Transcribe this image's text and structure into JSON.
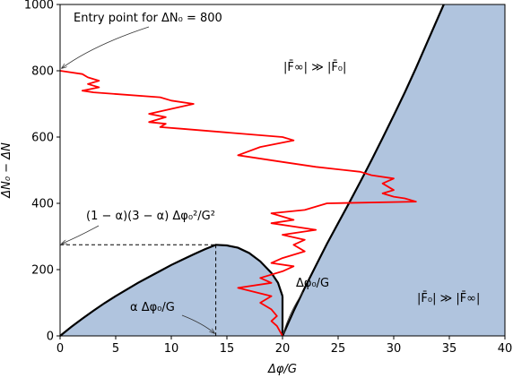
{
  "chart_data": {
    "type": "line",
    "xlabel": "Δφ/G",
    "ylabel": "ΔN₀ − ΔN",
    "xlim": [
      0,
      40
    ],
    "ylim": [
      0,
      1000
    ],
    "xticks": [
      "0",
      "5",
      "10",
      "15",
      "20",
      "25",
      "30",
      "35",
      "40"
    ],
    "yticks": [
      "0",
      "200",
      "400",
      "600",
      "800",
      "1000"
    ],
    "grid": false,
    "colors": {
      "region_fill": "#b0c4de",
      "boundary": "#000000",
      "trajectory": "#ff0000"
    },
    "boundary_curves": {
      "dome": {
        "x": [
          0,
          1,
          2,
          3,
          4,
          5,
          6,
          7,
          8,
          9,
          10,
          11,
          12,
          13,
          14,
          15,
          16,
          17,
          18,
          19,
          19.6,
          20
        ],
        "y": [
          0,
          27,
          52,
          76,
          99,
          120,
          140,
          160,
          178,
          196,
          214,
          230,
          246,
          261,
          275,
          273,
          266,
          250,
          225,
          190,
          160,
          120
        ]
      },
      "cusp": {
        "x": [
          20,
          20,
          20
        ],
        "y": [
          120,
          60,
          0
        ]
      },
      "outer": {
        "x": [
          20,
          21,
          22,
          23,
          24,
          25,
          26,
          27,
          28,
          29,
          30,
          31,
          32,
          33,
          34.5
        ],
        "y": [
          0,
          75,
          145,
          212,
          278,
          340,
          402,
          465,
          530,
          597,
          665,
          735,
          808,
          885,
          1000
        ]
      }
    },
    "trajectory": {
      "x": [
        0,
        2,
        2.5,
        3.5,
        2.5,
        3.5,
        2,
        3,
        9,
        10,
        12,
        8,
        9.5,
        8,
        9.5,
        9,
        11,
        20,
        21,
        18,
        16,
        20,
        23,
        27,
        28,
        30,
        29,
        30,
        29,
        30,
        31,
        32,
        24,
        22,
        19,
        21,
        19,
        23,
        20,
        22,
        21,
        22,
        20,
        19,
        21,
        20,
        18,
        19,
        16,
        19,
        18,
        19,
        19.5,
        19,
        19.5,
        20
      ],
      "y": [
        800,
        790,
        780,
        770,
        760,
        750,
        740,
        735,
        720,
        710,
        700,
        670,
        660,
        645,
        640,
        630,
        625,
        600,
        590,
        570,
        545,
        525,
        510,
        495,
        485,
        475,
        460,
        440,
        430,
        420,
        415,
        405,
        400,
        380,
        370,
        350,
        340,
        320,
        305,
        290,
        275,
        255,
        235,
        220,
        210,
        195,
        175,
        160,
        145,
        120,
        100,
        80,
        60,
        45,
        30,
        0
      ]
    },
    "annotations": {
      "entry_point": "Entry point for ΔN₀ = 800",
      "region_top": "|F̄∞| ≫ |F̄₀|",
      "region_right": "|F̄₀| ≫ |F̄∞|",
      "peak_formula": "(1 − α)(3 − α) Δφ₀²/G²",
      "alpha_label": "α Δφ₀/G",
      "phi_label": "Δφ₀/G"
    },
    "reference_lines": {
      "peak_y": 275,
      "alpha_x": 14
    }
  }
}
